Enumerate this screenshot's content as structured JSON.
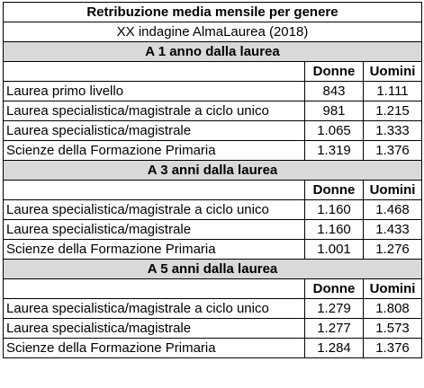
{
  "title": "Retribuzione media mensile per genere",
  "subtitle": "XX indagine AlmaLaurea (2018)",
  "columns": [
    "Donne",
    "Uomini"
  ],
  "sections": [
    {
      "heading": "A 1 anno dalla laurea",
      "rows": [
        {
          "label": "Laurea primo livello",
          "donne": "843",
          "uomini": "1.111"
        },
        {
          "label": "Laurea specialistica/magistrale a ciclo unico",
          "donne": "981",
          "uomini": "1.215"
        },
        {
          "label": "Laurea specialistica/magistrale",
          "donne": "1.065",
          "uomini": "1.333"
        },
        {
          "label": "Scienze della Formazione Primaria",
          "donne": "1.319",
          "uomini": "1.376"
        }
      ]
    },
    {
      "heading": "A 3 anni dalla laurea",
      "rows": [
        {
          "label": "Laurea specialistica/magistrale a ciclo unico",
          "donne": "1.160",
          "uomini": "1.468"
        },
        {
          "label": "Laurea specialistica/magistrale",
          "donne": "1.160",
          "uomini": "1.433"
        },
        {
          "label": "Scienze della Formazione Primaria",
          "donne": "1.001",
          "uomini": "1.276"
        }
      ]
    },
    {
      "heading": "A 5 anni dalla laurea",
      "rows": [
        {
          "label": "Laurea specialistica/magistrale a ciclo unico",
          "donne": "1.279",
          "uomini": "1.808"
        },
        {
          "label": "Laurea specialistica/magistrale",
          "donne": "1.277",
          "uomini": "1.573"
        },
        {
          "label": "Scienze della Formazione Primaria",
          "donne": "1.284",
          "uomini": "1.376"
        }
      ]
    }
  ]
}
